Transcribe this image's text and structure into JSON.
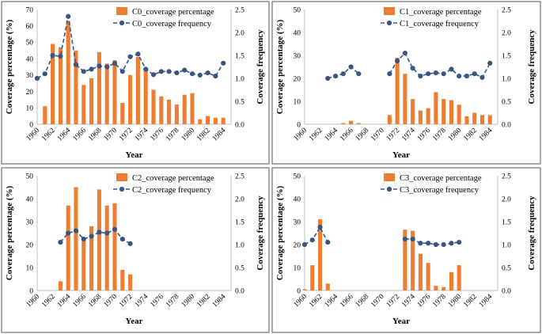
{
  "chart_data": [
    {
      "type": "bar+line",
      "x": [
        1960,
        1961,
        1962,
        1963,
        1964,
        1965,
        1966,
        1967,
        1968,
        1969,
        1970,
        1971,
        1972,
        1973,
        1974,
        1975,
        1976,
        1977,
        1978,
        1979,
        1980,
        1981,
        1982,
        1983,
        1984,
        1985
      ],
      "x_tick_labels": [
        "1960",
        "1962",
        "1964",
        "1966",
        "1968",
        "1970",
        "1972",
        "1974",
        "1976",
        "1978",
        "1980",
        "1982",
        "1984"
      ],
      "series": [
        {
          "name": "C0_coverage percentage",
          "type": "bar",
          "axis": "left",
          "values": [
            0,
            11,
            49,
            47,
            63,
            45,
            24,
            28,
            44,
            37,
            39,
            13,
            30,
            41,
            33,
            21,
            17,
            15,
            12,
            18,
            19,
            3,
            5,
            4,
            4,
            0
          ]
        },
        {
          "name": "C0_coverage frequency",
          "type": "line",
          "axis": "right",
          "values": [
            1.0,
            1.1,
            1.5,
            1.48,
            2.35,
            1.3,
            1.15,
            1.2,
            1.27,
            1.25,
            1.33,
            1.15,
            1.47,
            1.53,
            1.2,
            1.08,
            1.15,
            1.15,
            1.12,
            1.18,
            1.1,
            1.07,
            1.12,
            1.05,
            1.33,
            null
          ]
        }
      ],
      "xlabel": "Year",
      "ylabel": "Coverage percentage (%)",
      "y2label": "Coverage frequency",
      "ylim": [
        0,
        70
      ],
      "yticks": [
        0,
        10,
        20,
        30,
        40,
        50,
        60,
        70
      ],
      "y2lim": [
        0,
        2.5
      ],
      "y2ticks": [
        "0.0",
        "0.5",
        "1.0",
        "1.5",
        "2.0",
        "2.5"
      ],
      "legend": "top-center",
      "grid": false
    },
    {
      "type": "bar+line",
      "x": [
        1960,
        1961,
        1962,
        1963,
        1964,
        1965,
        1966,
        1967,
        1968,
        1969,
        1970,
        1971,
        1972,
        1973,
        1974,
        1975,
        1976,
        1977,
        1978,
        1979,
        1980,
        1981,
        1982,
        1983,
        1984,
        1985
      ],
      "x_tick_labels": [
        "1960",
        "1962",
        "1964",
        "1966",
        "1968",
        "1970",
        "1972",
        "1974",
        "1976",
        "1978",
        "1980",
        "1982",
        "1984"
      ],
      "series": [
        {
          "name": "C1_coverage percentage",
          "type": "bar",
          "axis": "left",
          "values": [
            0,
            0,
            0,
            0,
            0,
            0.5,
            1.5,
            0.5,
            0,
            0,
            0,
            4,
            29,
            22,
            11,
            6,
            7,
            14,
            11,
            10.5,
            8.5,
            3.5,
            5,
            4,
            4,
            0
          ]
        },
        {
          "name": "C1_coverage frequency",
          "type": "line",
          "axis": "right",
          "values": [
            null,
            null,
            null,
            1.0,
            1.05,
            1.1,
            1.25,
            1.1,
            null,
            null,
            null,
            1.1,
            1.38,
            1.55,
            1.22,
            1.05,
            1.1,
            1.12,
            1.1,
            1.2,
            1.05,
            1.05,
            1.1,
            1.02,
            1.33,
            null
          ]
        }
      ],
      "xlabel": "Year",
      "ylabel": "Coverage percentage (%)",
      "y2label": "Coverage frequency",
      "ylim": [
        0,
        50
      ],
      "yticks": [
        0,
        10,
        20,
        30,
        40,
        50
      ],
      "y2lim": [
        0,
        2.5
      ],
      "y2ticks": [
        "0.0",
        "0.5",
        "1.0",
        "1.5",
        "2.0",
        "2.5"
      ],
      "legend": "top-center",
      "grid": false
    },
    {
      "type": "bar+line",
      "x": [
        1960,
        1961,
        1962,
        1963,
        1964,
        1965,
        1966,
        1967,
        1968,
        1969,
        1970,
        1971,
        1972,
        1973,
        1974,
        1975,
        1976,
        1977,
        1978,
        1979,
        1980,
        1981,
        1982,
        1983,
        1984,
        1985
      ],
      "x_tick_labels": [
        "1960",
        "1962",
        "1964",
        "1966",
        "1968",
        "1970",
        "1972",
        "1974",
        "1976",
        "1978",
        "1980",
        "1982",
        "1984"
      ],
      "series": [
        {
          "name": "C2_coverage percentage",
          "type": "bar",
          "axis": "left",
          "values": [
            0,
            0,
            0,
            4,
            37,
            45,
            23,
            28,
            44,
            37,
            38,
            9,
            7,
            0,
            0,
            0,
            0,
            0,
            0,
            0,
            0,
            0,
            0,
            0,
            0,
            0
          ]
        },
        {
          "name": "C2_coverage frequency",
          "type": "line",
          "axis": "right",
          "values": [
            null,
            null,
            null,
            1.05,
            1.25,
            1.3,
            1.12,
            1.18,
            1.27,
            1.25,
            1.33,
            1.12,
            1.02,
            null,
            null,
            null,
            null,
            null,
            null,
            null,
            null,
            null,
            null,
            null,
            null,
            null
          ]
        }
      ],
      "xlabel": "Year",
      "ylabel": "Coverage percentage (%)",
      "y2label": "Coverage frequency",
      "ylim": [
        0,
        50
      ],
      "yticks": [
        0,
        10,
        20,
        30,
        40,
        50
      ],
      "y2lim": [
        0,
        2.5
      ],
      "y2ticks": [
        "0.0",
        "0.5",
        "1.0",
        "1.5",
        "2.0",
        "2.5"
      ],
      "legend": "top-center",
      "grid": false
    },
    {
      "type": "bar+line",
      "x": [
        1960,
        1961,
        1962,
        1963,
        1964,
        1965,
        1966,
        1967,
        1968,
        1969,
        1970,
        1971,
        1972,
        1973,
        1974,
        1975,
        1976,
        1977,
        1978,
        1979,
        1980,
        1981,
        1982,
        1983,
        1984,
        1985
      ],
      "x_tick_labels": [
        "1960",
        "1962",
        "1964",
        "1966",
        "1968",
        "1970",
        "1972",
        "1974",
        "1976",
        "1978",
        "1980",
        "1982",
        "1984"
      ],
      "series": [
        {
          "name": "C3_coverage percentage",
          "type": "bar",
          "axis": "left",
          "values": [
            0.5,
            11,
            31,
            3,
            0,
            0,
            0,
            0,
            0,
            0,
            0,
            0,
            0,
            26.5,
            26,
            16,
            12,
            2,
            1.5,
            8,
            11,
            0,
            0,
            0,
            0,
            0
          ]
        },
        {
          "name": "C3_coverage frequency",
          "type": "line",
          "axis": "right",
          "values": [
            1.0,
            1.1,
            1.38,
            1.05,
            null,
            null,
            null,
            null,
            null,
            null,
            null,
            null,
            null,
            1.12,
            1.12,
            1.03,
            1.03,
            1.0,
            1.0,
            1.03,
            1.05,
            null,
            null,
            null,
            null,
            null
          ]
        }
      ],
      "xlabel": "Year",
      "ylabel": "Coverage percentage (%)",
      "y2label": "Coverage frequency",
      "ylim": [
        0,
        50
      ],
      "yticks": [
        0,
        10,
        20,
        30,
        40,
        50
      ],
      "y2lim": [
        0,
        2.5
      ],
      "y2ticks": [
        "0.0",
        "0.5",
        "1.0",
        "1.5",
        "2.0",
        "2.5"
      ],
      "legend": "top-center",
      "grid": false
    }
  ],
  "colors": {
    "bar": "#ed7d31",
    "line": "#2e5597",
    "marker_fill": "#44546a",
    "marker_stroke": "#2e5597"
  }
}
